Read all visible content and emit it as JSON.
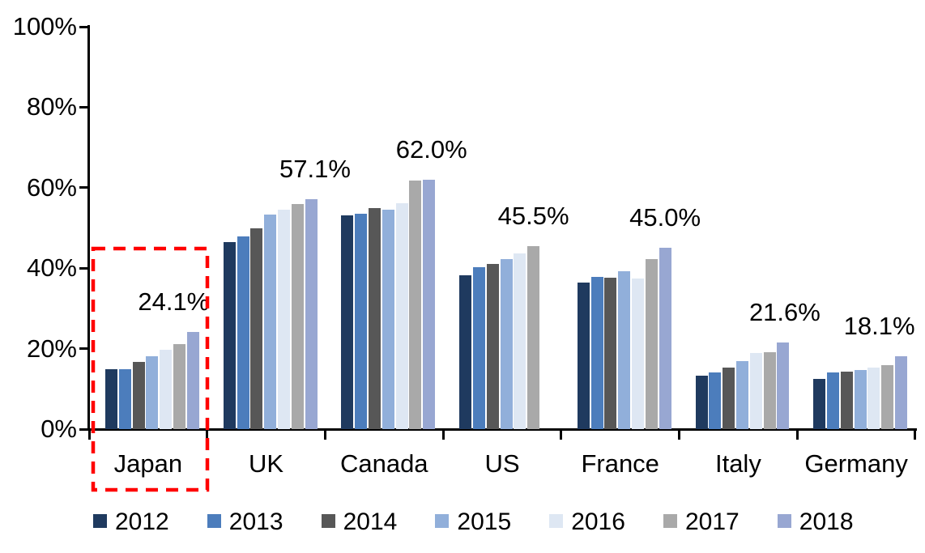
{
  "chart_data": {
    "type": "bar",
    "title": "",
    "xlabel": "",
    "ylabel": "",
    "ylim": [
      0,
      100
    ],
    "grid": false,
    "legend_position": "bottom",
    "categories": [
      "Japan",
      "UK",
      "Canada",
      "US",
      "France",
      "Italy",
      "Germany"
    ],
    "series": [
      {
        "name": "2012",
        "color": "#1F3A5F",
        "values": [
          14.8,
          46.4,
          53.1,
          38.3,
          36.5,
          13.3,
          12.5
        ]
      },
      {
        "name": "2013",
        "color": "#4C7DBC",
        "values": [
          15.0,
          47.9,
          53.5,
          40.2,
          37.8,
          14.1,
          14.1
        ]
      },
      {
        "name": "2014",
        "color": "#575757",
        "values": [
          16.7,
          49.9,
          54.9,
          41.0,
          37.6,
          15.3,
          14.3
        ]
      },
      {
        "name": "2015",
        "color": "#91AFDA",
        "values": [
          18.1,
          53.3,
          54.6,
          42.2,
          39.3,
          16.9,
          14.7
        ]
      },
      {
        "name": "2016",
        "color": "#DEE7F3",
        "values": [
          19.8,
          54.6,
          56.2,
          43.6,
          37.4,
          18.9,
          15.3
        ]
      },
      {
        "name": "2017",
        "color": "#A9A9A9",
        "values": [
          21.1,
          55.9,
          61.8,
          45.5,
          42.3,
          19.1,
          15.9
        ]
      },
      {
        "name": "2018",
        "color": "#98A7D2",
        "values": [
          24.1,
          57.1,
          62.0,
          null,
          45.0,
          21.6,
          18.1
        ]
      }
    ],
    "data_labels": [
      "24.1%",
      "57.1%",
      "62.0%",
      "45.5%",
      "45.0%",
      "21.6%",
      "18.1%"
    ],
    "yticks": [
      {
        "label": "100%",
        "value": 100
      },
      {
        "label": "80%",
        "value": 80
      },
      {
        "label": "60%",
        "value": 60
      },
      {
        "label": "40%",
        "value": 40
      },
      {
        "label": "20%",
        "value": 20
      },
      {
        "label": "0%",
        "value": 0
      }
    ],
    "highlight": {
      "category": "Japan",
      "color": "#FF0000",
      "style": "dashed-box"
    }
  }
}
